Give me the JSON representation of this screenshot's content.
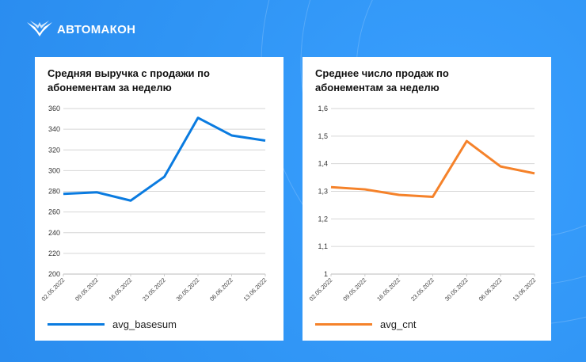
{
  "brand": {
    "name": "АВТОМАКОН"
  },
  "chart_data": [
    {
      "type": "line",
      "title": "Средняя выручка с продажи по абонементам за неделю",
      "categories": [
        "02.05.2022",
        "09.05.2022",
        "16.05.2022",
        "23.05.2022",
        "30.05.2022",
        "06.06.2022",
        "13.06.2022"
      ],
      "series": [
        {
          "name": "avg_basesum",
          "values": [
            277.5,
            279,
            271,
            294,
            351,
            334,
            329
          ],
          "color": "#0a7be0"
        }
      ],
      "yticks": [
        "200",
        "220",
        "240",
        "260",
        "280",
        "300",
        "320",
        "340",
        "360"
      ],
      "ylim": [
        200,
        360
      ],
      "grid": true,
      "legend": "bottom-left"
    },
    {
      "type": "line",
      "title": "Среднее число продаж по абонементам за неделю",
      "categories": [
        "02.05.2022",
        "09.05.2022",
        "16.05.2022",
        "23.05.2022",
        "30.05.2022",
        "06.06.2022",
        "13.06.2022"
      ],
      "series": [
        {
          "name": "avg_cnt",
          "values": [
            1.315,
            1.307,
            1.287,
            1.28,
            1.482,
            1.39,
            1.365
          ],
          "color": "#f5822a"
        }
      ],
      "yticks": [
        "1",
        "1,1",
        "1,2",
        "1,3",
        "1,4",
        "1,5",
        "1,6"
      ],
      "ylim": [
        1,
        1.6
      ],
      "grid": true,
      "legend": "bottom-left"
    }
  ]
}
